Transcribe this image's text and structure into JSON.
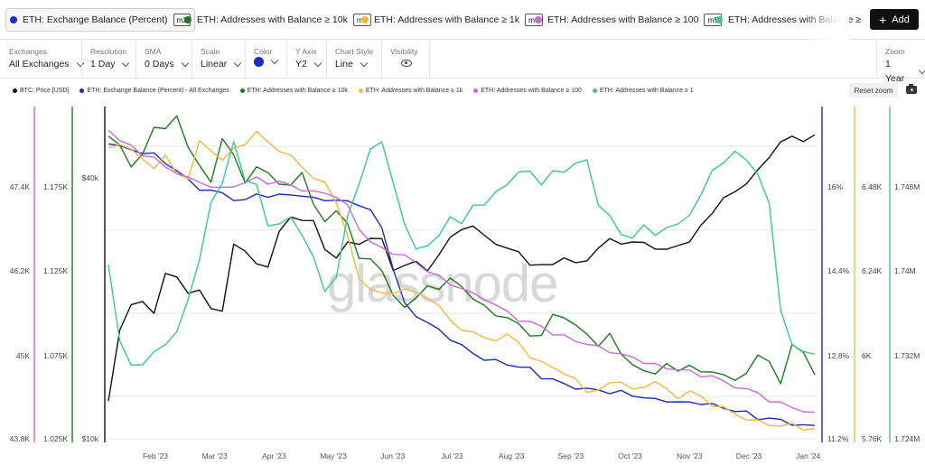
{
  "tabs": [
    {
      "label": "ETH: Exchange Balance (Percent)",
      "badge": "m2",
      "color": "#1a2bbf",
      "active": true
    },
    {
      "label": "ETH: Addresses with Balance ≥ 10k",
      "badge": "m3",
      "color": "#1f7a1f",
      "active": false
    },
    {
      "label": "ETH: Addresses with Balance ≥ 1k",
      "badge": "m4",
      "color": "#f5b642",
      "active": false
    },
    {
      "label": "ETH: Addresses with Balance ≥ 100",
      "badge": "m5",
      "color": "#c96bd3",
      "active": false
    },
    {
      "label": "ETH: Addresses with Balance ≥",
      "badge": "",
      "color": "#3cc890",
      "active": false
    }
  ],
  "add_button": {
    "label": "Add"
  },
  "controls": {
    "exchanges": {
      "label": "Exchanges",
      "value": "All Exchanges"
    },
    "resolution": {
      "label": "Resolution",
      "value": "1 Day"
    },
    "sma": {
      "label": "SMA",
      "value": "0 Days"
    },
    "scale": {
      "label": "Scale",
      "value": "Linear"
    },
    "color": {
      "label": "Color",
      "value": "#1a2bbf"
    },
    "y_axis": {
      "label": "Y Axis",
      "value": "Y2"
    },
    "chart_style": {
      "label": "Chart Style",
      "value": "Line"
    },
    "visibility": {
      "label": "Visibility"
    },
    "zoom": {
      "label": "Zoom",
      "value": "1 Year"
    }
  },
  "legend": [
    {
      "label": "BTC: Price [USD]",
      "color": "#111111"
    },
    {
      "label": "ETH: Exchange Balance (Percent) - All Exchanges",
      "color": "#1a2bbf"
    },
    {
      "label": "ETH: Addresses with Balance ≥ 10k",
      "color": "#1f7a1f"
    },
    {
      "label": "ETH: Addresses with Balance ≥ 1k",
      "color": "#f5b642"
    },
    {
      "label": "ETH: Addresses with Balance ≥ 100",
      "color": "#c96bd3"
    },
    {
      "label": "ETH: Addresses with Balance ≥ 1",
      "color": "#3cc890"
    }
  ],
  "reset_zoom": "Reset zoom",
  "watermark": "glassnode",
  "chart_data": {
    "type": "line",
    "x_axis": {
      "ticks": [
        "Feb '23",
        "Mar '23",
        "Apr '23",
        "May '23",
        "Jun '23",
        "Jul '23",
        "Aug '23",
        "Sep '23",
        "Oct '23",
        "Nov '23",
        "Dec '23",
        "Jan '24"
      ],
      "range": [
        "2023-01-09",
        "2024-01-09"
      ]
    },
    "axes": {
      "y_10k": {
        "ticks": [
          "43.8K",
          "45K",
          "46.2K",
          "47.4K"
        ],
        "range": [
          43.8,
          48.5
        ],
        "color": "#c96bd3"
      },
      "y_1k_large": {
        "ticks": [
          "1.025K",
          "1.075K",
          "1.125K",
          "1.175K"
        ],
        "range": [
          1.025,
          1.2
        ],
        "color": "#1f7a1f"
      },
      "y_btc": {
        "ticks": [
          "$10k",
          "$40k"
        ],
        "color": "#111111"
      },
      "y_pct": {
        "ticks": [
          "11.2%",
          "12.8%",
          "14.4%",
          "16%"
        ],
        "range": [
          11.2,
          17.6
        ],
        "color": "#1a2bbf"
      },
      "y_1k": {
        "ticks": [
          "5.76K",
          "6K",
          "6.24K",
          "6.48K"
        ],
        "range": [
          5.76,
          6.72
        ],
        "color": "#f5b642"
      },
      "y_1": {
        "ticks": [
          "1.724M",
          "1.732M",
          "1.74M",
          "1.748M"
        ],
        "range": [
          1.724,
          1.755
        ],
        "color": "#3cc890"
      }
    },
    "series": [
      {
        "name": "BTC: Price [USD]",
        "color": "#111111",
        "values": [
          0.12,
          0.35,
          0.42,
          0.44,
          0.4,
          0.52,
          0.52,
          0.46,
          0.47,
          0.42,
          0.4,
          0.62,
          0.6,
          0.55,
          0.55,
          0.66,
          0.7,
          0.7,
          0.69,
          0.6,
          0.58,
          0.62,
          0.62,
          0.64,
          0.63,
          0.54,
          0.55,
          0.56,
          0.54,
          0.58,
          0.64,
          0.67,
          0.67,
          0.65,
          0.62,
          0.6,
          0.6,
          0.55,
          0.55,
          0.56,
          0.57,
          0.56,
          0.57,
          0.6,
          0.64,
          0.62,
          0.62,
          0.63,
          0.6,
          0.6,
          0.62,
          0.62,
          0.68,
          0.72,
          0.76,
          0.79,
          0.81,
          0.85,
          0.9,
          0.94,
          0.96,
          0.95,
          0.96
        ]
      },
      {
        "name": "ETH: Exchange Balance (Percent) - All Exchanges",
        "color": "#1a2bbf",
        "values": [
          16.95,
          16.85,
          16.8,
          16.75,
          16.7,
          16.55,
          16.4,
          16.2,
          16.05,
          16.0,
          15.95,
          15.85,
          15.8,
          15.95,
          15.9,
          15.9,
          15.95,
          15.9,
          15.85,
          15.85,
          15.8,
          15.8,
          15.75,
          15.6,
          15.3,
          14.5,
          13.8,
          13.6,
          13.45,
          13.3,
          13.15,
          13.0,
          12.85,
          12.75,
          12.7,
          12.65,
          12.6,
          12.55,
          12.4,
          12.35,
          12.25,
          12.2,
          12.15,
          12.15,
          12.1,
          12.1,
          12.05,
          12.0,
          11.95,
          11.95,
          11.9,
          11.9,
          11.9,
          11.85,
          11.8,
          11.75,
          11.7,
          11.6,
          11.6,
          11.55,
          11.5,
          11.45,
          11.45
        ]
      },
      {
        "name": "ETH: Addresses with Balance ≥ 10k",
        "color": "#1f7a1f",
        "values": [
          1.185,
          1.18,
          1.17,
          1.175,
          1.19,
          1.19,
          1.195,
          1.18,
          1.17,
          1.16,
          1.185,
          1.175,
          1.16,
          1.17,
          1.165,
          1.16,
          1.16,
          1.165,
          1.15,
          1.14,
          1.145,
          1.14,
          1.12,
          1.12,
          1.115,
          1.1,
          1.095,
          1.1,
          1.105,
          1.105,
          1.11,
          1.105,
          1.1,
          1.095,
          1.09,
          1.09,
          1.085,
          1.08,
          1.08,
          1.09,
          1.09,
          1.085,
          1.08,
          1.075,
          1.08,
          1.07,
          1.065,
          1.06,
          1.06,
          1.065,
          1.06,
          1.065,
          1.06,
          1.06,
          1.06,
          1.055,
          1.06,
          1.07,
          1.065,
          1.055,
          1.075,
          1.07,
          1.06
        ]
      },
      {
        "name": "ETH: Addresses with Balance ≥ 1k",
        "color": "#f5b642",
        "values": [
          6.6,
          6.62,
          6.6,
          6.57,
          6.55,
          6.58,
          6.53,
          6.52,
          6.62,
          6.6,
          6.57,
          6.6,
          6.62,
          6.65,
          6.62,
          6.6,
          6.58,
          6.55,
          6.52,
          6.5,
          6.45,
          6.35,
          6.22,
          6.2,
          6.18,
          6.18,
          6.2,
          6.18,
          6.17,
          6.15,
          6.1,
          6.08,
          6.07,
          6.05,
          6.05,
          6.06,
          6.04,
          6.0,
          5.98,
          5.97,
          5.95,
          5.93,
          5.9,
          5.9,
          5.92,
          5.93,
          5.9,
          5.91,
          5.93,
          5.9,
          5.88,
          5.9,
          5.88,
          5.86,
          5.85,
          5.83,
          5.82,
          5.81,
          5.8,
          5.8,
          5.8,
          5.79,
          5.79
        ]
      },
      {
        "name": "ETH: Addresses with Balance ≥ 100",
        "color": "#c96bd3",
        "values": [
          48.2,
          48.05,
          47.95,
          47.85,
          47.8,
          47.65,
          47.6,
          47.5,
          47.45,
          47.4,
          47.35,
          47.4,
          47.45,
          47.5,
          47.45,
          47.45,
          47.4,
          47.35,
          47.3,
          47.3,
          47.25,
          47.1,
          46.8,
          46.6,
          46.5,
          46.45,
          46.4,
          46.3,
          46.2,
          46.1,
          46.0,
          45.95,
          45.85,
          45.8,
          45.7,
          45.6,
          45.5,
          45.45,
          45.4,
          45.3,
          45.25,
          45.2,
          45.15,
          45.1,
          45.05,
          45.0,
          44.95,
          44.9,
          44.85,
          44.8,
          44.8,
          44.75,
          44.7,
          44.7,
          44.6,
          44.55,
          44.5,
          44.45,
          44.35,
          44.3,
          44.25,
          44.2,
          44.15
        ]
      },
      {
        "name": "ETH: Addresses with Balance ≥ 1",
        "color": "#3cc890",
        "values": [
          1.7405,
          1.733,
          1.731,
          1.731,
          1.732,
          1.733,
          1.734,
          1.737,
          1.741,
          1.746,
          1.748,
          1.752,
          1.748,
          1.748,
          1.744,
          1.744,
          1.745,
          1.743,
          1.741,
          1.738,
          1.739,
          1.745,
          1.748,
          1.751,
          1.752,
          1.748,
          1.744,
          1.742,
          1.742,
          1.743,
          1.745,
          1.744,
          1.746,
          1.746,
          1.747,
          1.748,
          1.749,
          1.749,
          1.748,
          1.749,
          1.749,
          1.75,
          1.75,
          1.746,
          1.745,
          1.743,
          1.743,
          1.744,
          1.743,
          1.744,
          1.744,
          1.745,
          1.747,
          1.749,
          1.75,
          1.751,
          1.75,
          1.749,
          1.746,
          1.736,
          1.733,
          1.732,
          1.732
        ]
      }
    ]
  }
}
